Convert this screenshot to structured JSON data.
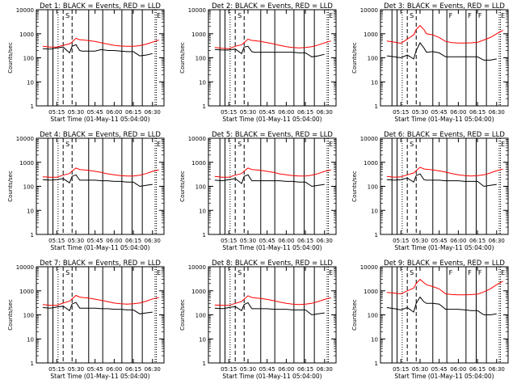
{
  "figure": {
    "ylabel": "Counts/sec",
    "xlabel": "Start Time (01-May-11 05:04:00)",
    "x_ticks": [
      "05:15",
      "05:30",
      "05:45",
      "06:00",
      "06:15",
      "06:30"
    ],
    "y_ticks": [
      "1",
      "10",
      "100",
      "1000",
      "10000"
    ],
    "interval_markers": {
      "S": "S",
      "F": "F",
      "E": "E"
    },
    "colors": {
      "events": "#000000",
      "lld": "#ff0000",
      "axes": "#000000",
      "background": "#ffffff"
    }
  },
  "chart_data": [
    {
      "type": "line",
      "title": "Det 1: BLACK = Events, RED = LLD",
      "yscale": "log",
      "ylim": [
        1,
        10000
      ],
      "x": [
        "05:04",
        "05:10",
        "05:15",
        "05:20",
        "05:25",
        "05:27",
        "05:30",
        "05:33",
        "05:35",
        "05:40",
        "05:45",
        "05:50",
        "05:55",
        "06:00",
        "06:05",
        "06:10",
        "06:15",
        "06:20",
        "06:25",
        "06:30",
        "06:35"
      ],
      "series": [
        {
          "name": "Events",
          "values": [
            240,
            230,
            260,
            280,
            160,
            300,
            350,
            200,
            190,
            190,
            190,
            220,
            200,
            200,
            190,
            180,
            180,
            120,
            130,
            150,
            null
          ]
        },
        {
          "name": "LLD",
          "values": [
            300,
            280,
            280,
            330,
            380,
            450,
            650,
            560,
            560,
            520,
            480,
            420,
            370,
            330,
            310,
            300,
            300,
            320,
            370,
            450,
            550
          ]
        }
      ]
    },
    {
      "type": "line",
      "title": "Det 2: BLACK = Events, RED = LLD",
      "yscale": "log",
      "ylim": [
        1,
        10000
      ],
      "x": [
        "05:04",
        "05:10",
        "05:15",
        "05:20",
        "05:25",
        "05:27",
        "05:30",
        "05:33",
        "05:35",
        "05:40",
        "05:45",
        "05:50",
        "05:55",
        "06:00",
        "06:05",
        "06:10",
        "06:15",
        "06:20",
        "06:25",
        "06:30",
        "06:35"
      ],
      "series": [
        {
          "name": "Events",
          "values": [
            220,
            210,
            210,
            230,
            150,
            280,
            300,
            180,
            170,
            170,
            170,
            170,
            170,
            170,
            170,
            160,
            160,
            110,
            120,
            140,
            null
          ]
        },
        {
          "name": "LLD",
          "values": [
            270,
            250,
            240,
            300,
            350,
            420,
            600,
            530,
            520,
            480,
            430,
            380,
            330,
            290,
            270,
            260,
            270,
            290,
            340,
            420,
            500
          ]
        }
      ]
    },
    {
      "type": "line",
      "title": "Det 3: BLACK = Events, RED = LLD",
      "yscale": "log",
      "ylim": [
        1,
        10000
      ],
      "x": [
        "05:04",
        "05:10",
        "05:15",
        "05:20",
        "05:25",
        "05:27",
        "05:30",
        "05:33",
        "05:35",
        "05:40",
        "05:45",
        "05:50",
        "05:55",
        "06:00",
        "06:05",
        "06:10",
        "06:15",
        "06:20",
        "06:25",
        "06:30",
        "06:35"
      ],
      "series": [
        {
          "name": "Events",
          "values": [
            120,
            110,
            100,
            130,
            90,
            200,
            420,
            260,
            170,
            180,
            160,
            110,
            110,
            110,
            110,
            110,
            110,
            80,
            80,
            90,
            null
          ]
        },
        {
          "name": "LLD",
          "values": [
            500,
            450,
            400,
            600,
            900,
            1500,
            2200,
            1500,
            1000,
            900,
            700,
            480,
            430,
            410,
            410,
            420,
            440,
            550,
            700,
            1000,
            1400
          ]
        }
      ]
    },
    {
      "type": "line",
      "title": "Det 4: BLACK = Events, RED = LLD",
      "yscale": "log",
      "ylim": [
        1,
        10000
      ],
      "x": [
        "05:04",
        "05:10",
        "05:15",
        "05:20",
        "05:25",
        "05:27",
        "05:30",
        "05:33",
        "05:35",
        "05:40",
        "05:45",
        "05:50",
        "05:55",
        "06:00",
        "06:05",
        "06:10",
        "06:15",
        "06:20",
        "06:25",
        "06:30",
        "06:35"
      ],
      "series": [
        {
          "name": "Events",
          "values": [
            190,
            180,
            190,
            210,
            140,
            260,
            300,
            180,
            180,
            180,
            180,
            170,
            170,
            160,
            160,
            150,
            150,
            100,
            110,
            120,
            null
          ]
        },
        {
          "name": "LLD",
          "values": [
            250,
            240,
            240,
            290,
            340,
            430,
            580,
            500,
            490,
            460,
            420,
            380,
            330,
            300,
            280,
            270,
            270,
            290,
            340,
            420,
            480
          ]
        }
      ]
    },
    {
      "type": "line",
      "title": "Det 5: BLACK = Events, RED = LLD",
      "yscale": "log",
      "ylim": [
        1,
        10000
      ],
      "x": [
        "05:04",
        "05:10",
        "05:15",
        "05:20",
        "05:25",
        "05:27",
        "05:30",
        "05:33",
        "05:35",
        "05:40",
        "05:45",
        "05:50",
        "05:55",
        "06:00",
        "06:05",
        "06:10",
        "06:15",
        "06:20",
        "06:25",
        "06:30",
        "06:35"
      ],
      "series": [
        {
          "name": "Events",
          "values": [
            180,
            170,
            190,
            210,
            130,
            260,
            300,
            170,
            170,
            170,
            170,
            170,
            170,
            160,
            160,
            150,
            150,
            100,
            110,
            120,
            null
          ]
        },
        {
          "name": "LLD",
          "values": [
            260,
            240,
            240,
            290,
            340,
            430,
            580,
            500,
            490,
            460,
            420,
            380,
            330,
            300,
            280,
            270,
            270,
            290,
            340,
            420,
            480
          ]
        }
      ]
    },
    {
      "type": "line",
      "title": "Det 6: BLACK = Events, RED = LLD",
      "yscale": "log",
      "ylim": [
        1,
        10000
      ],
      "x": [
        "05:04",
        "05:10",
        "05:15",
        "05:20",
        "05:25",
        "05:27",
        "05:30",
        "05:33",
        "05:35",
        "05:40",
        "05:45",
        "05:50",
        "05:55",
        "06:00",
        "06:05",
        "06:10",
        "06:15",
        "06:20",
        "06:25",
        "06:30",
        "06:35"
      ],
      "series": [
        {
          "name": "Events",
          "values": [
            190,
            180,
            190,
            220,
            150,
            280,
            330,
            190,
            180,
            180,
            180,
            170,
            170,
            170,
            160,
            160,
            160,
            100,
            110,
            120,
            null
          ]
        },
        {
          "name": "LLD",
          "values": [
            260,
            240,
            250,
            300,
            360,
            450,
            620,
            530,
            510,
            480,
            440,
            390,
            340,
            300,
            280,
            270,
            280,
            300,
            360,
            450,
            520
          ]
        }
      ]
    },
    {
      "type": "line",
      "title": "Det 7: BLACK = Events, RED = LLD",
      "yscale": "log",
      "ylim": [
        1,
        10000
      ],
      "x": [
        "05:04",
        "05:10",
        "05:15",
        "05:20",
        "05:25",
        "05:27",
        "05:30",
        "05:33",
        "05:35",
        "05:40",
        "05:45",
        "05:50",
        "05:55",
        "06:00",
        "06:05",
        "06:10",
        "06:15",
        "06:20",
        "06:25",
        "06:30",
        "06:35"
      ],
      "series": [
        {
          "name": "Events",
          "values": [
            200,
            190,
            210,
            230,
            150,
            280,
            330,
            190,
            190,
            190,
            190,
            180,
            180,
            170,
            170,
            160,
            160,
            110,
            120,
            130,
            null
          ]
        },
        {
          "name": "LLD",
          "values": [
            270,
            250,
            250,
            310,
            370,
            460,
            640,
            550,
            530,
            500,
            450,
            400,
            350,
            310,
            290,
            280,
            290,
            310,
            370,
            460,
            530
          ]
        }
      ]
    },
    {
      "type": "line",
      "title": "Det 8: BLACK = Events, RED = LLD",
      "yscale": "log",
      "ylim": [
        1,
        10000
      ],
      "x": [
        "05:04",
        "05:10",
        "05:15",
        "05:20",
        "05:25",
        "05:27",
        "05:30",
        "05:33",
        "05:35",
        "05:40",
        "05:45",
        "05:50",
        "05:55",
        "06:00",
        "06:05",
        "06:10",
        "06:15",
        "06:20",
        "06:25",
        "06:30",
        "06:35"
      ],
      "series": [
        {
          "name": "Events",
          "values": [
            190,
            180,
            200,
            220,
            150,
            270,
            320,
            180,
            180,
            180,
            180,
            170,
            170,
            170,
            160,
            160,
            160,
            100,
            110,
            120,
            null
          ]
        },
        {
          "name": "LLD",
          "values": [
            260,
            250,
            250,
            300,
            360,
            450,
            620,
            530,
            510,
            480,
            440,
            390,
            340,
            300,
            280,
            270,
            280,
            300,
            360,
            440,
            510
          ]
        }
      ]
    },
    {
      "type": "line",
      "title": "Det 9: BLACK = Events, RED = LLD",
      "yscale": "log",
      "ylim": [
        1,
        10000
      ],
      "x": [
        "05:04",
        "05:10",
        "05:15",
        "05:20",
        "05:25",
        "05:27",
        "05:30",
        "05:33",
        "05:35",
        "05:40",
        "05:45",
        "05:50",
        "05:55",
        "06:00",
        "06:05",
        "06:10",
        "06:15",
        "06:20",
        "06:25",
        "06:30",
        "06:35"
      ],
      "series": [
        {
          "name": "Events",
          "values": [
            200,
            180,
            160,
            200,
            130,
            300,
            550,
            350,
            300,
            300,
            280,
            170,
            170,
            170,
            160,
            150,
            150,
            100,
            100,
            110,
            null
          ]
        },
        {
          "name": "LLD",
          "values": [
            850,
            800,
            750,
            1000,
            1300,
            2000,
            3000,
            2200,
            1800,
            1500,
            1200,
            750,
            700,
            680,
            680,
            700,
            720,
            900,
            1200,
            1800,
            2500
          ]
        }
      ]
    }
  ]
}
